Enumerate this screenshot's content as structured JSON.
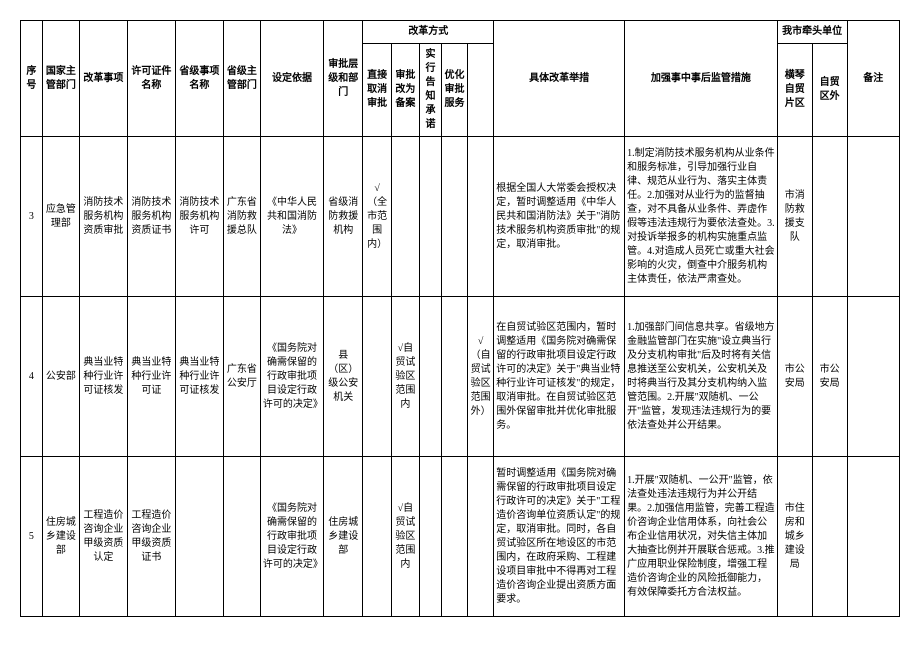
{
  "headers": {
    "seq": "序号",
    "dept": "国家主管部门",
    "reform": "改革事项",
    "permit": "许可证件名称",
    "provitem": "省级事项名称",
    "provdept": "省级主管部门",
    "basis": "设定依据",
    "level": "审批层级和部门",
    "method_group": "改革方式",
    "m1": "直接取消审批",
    "m2": "审批改为备案",
    "m3": "实行告知承诺",
    "m4": "优化审批服务",
    "m5": "",
    "measure": "具体改革举措",
    "super": "加强事中事后监管措施",
    "unit_group": "我市牵头单位",
    "u1": "横琴自贸片区",
    "u2": "自贸区外",
    "note": "备注"
  },
  "rows": [
    {
      "seq": "3",
      "dept": "应急管理部",
      "reform": "消防技术服务机构资质审批",
      "permit": "消防技术服务机构资质证书",
      "provitem": "消防技术服务机构许可",
      "provdept": "广东省消防救援总队",
      "basis": "《中华人民共和国消防法》",
      "level": "省级消防救援机构",
      "m1": "√（全市范围内）",
      "m2": "",
      "m3": "",
      "m4": "",
      "m5": "",
      "measure": "根据全国人大常委会授权决定，暂时调整适用《中华人民共和国消防法》关于\"消防技术服务机构资质审批\"的规定，取消审批。",
      "super": "1.制定消防技术服务机构从业条件和服务标准，引导加强行业自律、规范从业行为、落实主体责任。2.加强对从业行为的监督抽查，对不具备从业条件、弄虚作假等违法违规行为要依法查处。3.对投诉举报多的机构实施重点监管。4.对造成人员死亡或重大社会影响的火灾，倒查中介服务机构主体责任，依法严肃查处。",
      "u1": "市消防救援支队",
      "u2": "",
      "note": ""
    },
    {
      "seq": "4",
      "dept": "公安部",
      "reform": "典当业特种行业许可证核发",
      "permit": "典当业特种行业许可证",
      "provitem": "典当业特种行业许可证核发",
      "provdept": "广东省公安厅",
      "basis": "《国务院对确需保留的行政审批项目设定行政许可的决定》",
      "level": "县（区）级公安机关",
      "m1": "",
      "m2": "√自贸试验区范围内",
      "m3": "",
      "m4": "",
      "m5": "√（自贸试验区范围外）",
      "measure": "在自贸试验区范围内，暂时调整适用《国务院对确需保留的行政审批项目设定行政许可的决定》关于\"典当业特种行业许可证核发\"的规定，取消审批。在自贸试验区范围外保留审批并优化审批服务。",
      "super": "1.加强部门间信息共享。省级地方金融监管部门在实施\"设立典当行及分支机构审批\"后及时将有关信息推送至公安机关，公安机关及时将典当行及其分支机构纳入监管范围。2.开展\"双随机、一公开\"监管，发现违法违规行为的要依法查处并公开结果。",
      "u1": "市公安局",
      "u2": "市公安局",
      "note": ""
    },
    {
      "seq": "5",
      "dept": "住房城乡建设部",
      "reform": "工程造价咨询企业甲级资质认定",
      "permit": "工程造价咨询企业甲级资质证书",
      "provitem": "",
      "provdept": "",
      "basis": "《国务院对确需保留的行政审批项目设定行政许可的决定》",
      "level": "住房城乡建设部",
      "m1": "",
      "m2": "√自贸试验区范围内",
      "m3": "",
      "m4": "",
      "m5": "",
      "measure": "暂时调整适用《国务院对确需保留的行政审批项目设定行政许可的决定》关于\"工程造价咨询单位资质认定\"的规定，取消审批。同时，各自贸试验区所在地设区的市范围内，在政府采购、工程建设项目审批中不得再对工程造价咨询企业提出资质方面要求。",
      "super": "1.开展\"双随机、一公开\"监管，依法查处违法违规行为并公开结果。2.加强信用监管，完善工程造价咨询企业信用体系，向社会公布企业信用状况，对失信主体加大抽查比例并开展联合惩戒。3.推广应用职业保险制度，增强工程造价咨询企业的风险抵御能力，有效保障委托方合法权益。",
      "u1": "市住房和城乡建设局",
      "u2": "",
      "note": ""
    }
  ]
}
